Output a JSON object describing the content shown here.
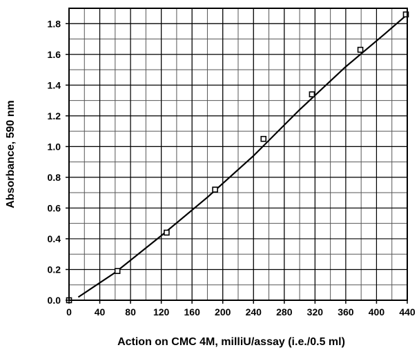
{
  "chart_data": {
    "type": "scatter",
    "title": "",
    "xlabel": "Action on CMC 4M, milliU/assay (i.e./0.5 ml)",
    "ylabel": "Absorbance,  590 nm",
    "xlim": [
      0,
      440
    ],
    "ylim": [
      0,
      1.9
    ],
    "x_ticks": [
      0,
      40,
      80,
      120,
      160,
      200,
      240,
      280,
      320,
      360,
      400,
      440
    ],
    "x_tick_labels": [
      "0",
      "40",
      "80",
      "120",
      "160",
      "200",
      "240",
      "280",
      "320",
      "360",
      "400",
      "440"
    ],
    "y_ticks": [
      0,
      0.2,
      0.4,
      0.6,
      0.8,
      1.0,
      1.2,
      1.4,
      1.6,
      1.8
    ],
    "y_tick_labels": [
      "0.0",
      "0.2",
      "0.4",
      "0.6",
      "0.8",
      "1.0",
      "1.2",
      "1.4",
      "1.6",
      "1.8"
    ],
    "grid": true,
    "minor_x_step": 20,
    "minor_y_step": 0.1,
    "series": [
      {
        "marker": "open-square",
        "x": [
          0,
          63,
          127,
          190,
          253,
          316,
          379,
          442
        ],
        "y": [
          0.0,
          0.19,
          0.44,
          0.72,
          1.05,
          1.34,
          1.63,
          1.86
        ]
      }
    ],
    "fit_curve": {
      "x": [
        12,
        60,
        120,
        180,
        240,
        300,
        360,
        410,
        440
      ],
      "y": [
        0.02,
        0.18,
        0.42,
        0.67,
        0.94,
        1.24,
        1.52,
        1.73,
        1.86
      ]
    }
  }
}
